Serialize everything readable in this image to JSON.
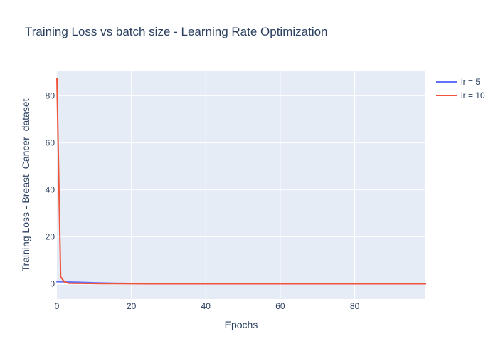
{
  "chart_data": {
    "type": "line",
    "title": "Training Loss vs batch size - Learning Rate Optimization",
    "xlabel": "Epochs",
    "ylabel": "Training Loss - Breast_Cancer_dataset",
    "xlim": [
      0,
      99
    ],
    "ylim": [
      -6.5,
      90.5
    ],
    "xticks": [
      0,
      20,
      40,
      60,
      80
    ],
    "yticks": [
      0,
      20,
      40,
      60,
      80
    ],
    "grid": true,
    "legend_position": "top-right",
    "series": [
      {
        "name": "lr = 5",
        "color": "#636efa",
        "x": [
          0,
          1,
          2,
          3,
          4,
          5,
          6,
          8,
          10,
          12,
          15,
          20,
          25,
          30,
          40,
          50,
          60,
          70,
          80,
          90,
          99
        ],
        "y": [
          0.9,
          0.9,
          0.85,
          0.8,
          0.75,
          0.7,
          0.65,
          0.55,
          0.45,
          0.35,
          0.25,
          0.15,
          0.08,
          0.05,
          0.03,
          0.02,
          0.02,
          0.01,
          0.01,
          0.01,
          0.01
        ]
      },
      {
        "name": "lr = 10",
        "color": "#ef553b",
        "x": [
          0,
          1,
          2,
          3,
          4,
          5,
          6,
          8,
          10,
          12,
          15,
          20,
          25,
          30,
          40,
          50,
          60,
          70,
          80,
          90,
          99
        ],
        "y": [
          87.5,
          3.0,
          0.9,
          0.3,
          0.25,
          0.22,
          0.2,
          0.17,
          0.14,
          0.11,
          0.08,
          0.05,
          0.03,
          0.02,
          0.02,
          0.01,
          0.01,
          0.01,
          0.01,
          0.01,
          0.01
        ]
      }
    ]
  },
  "colors": {
    "plot_background": "#e5ecf6",
    "grid": "#ffffff",
    "text": "#2a3f5f"
  }
}
